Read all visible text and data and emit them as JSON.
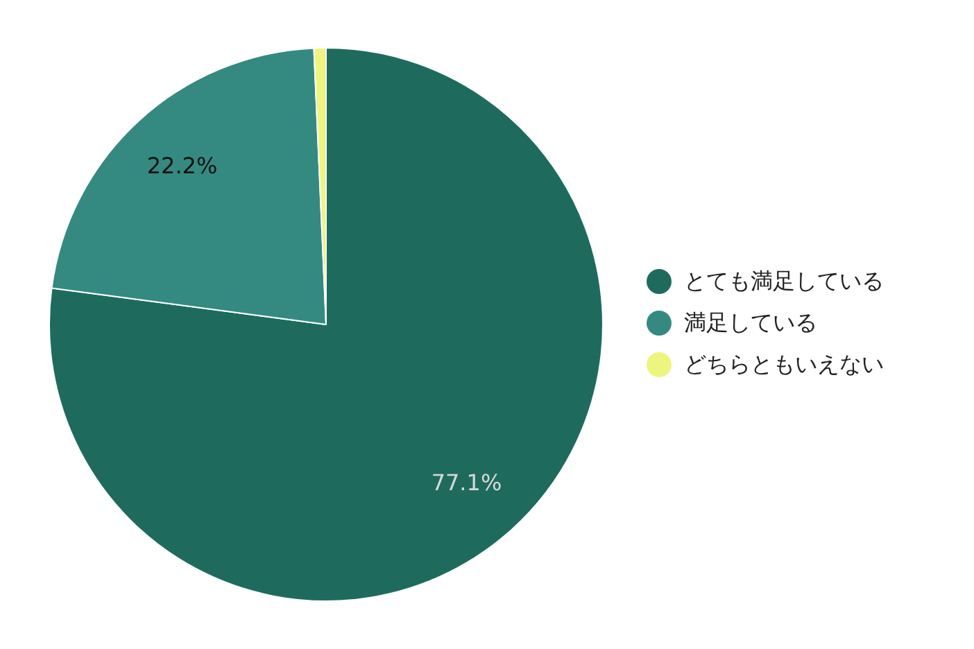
{
  "chart_data": {
    "type": "pie",
    "categories": [
      "とても満足している",
      "満足している",
      "どちらともいえない"
    ],
    "values": [
      77.1,
      22.2,
      0.7
    ],
    "colors": [
      "#1e6b5e",
      "#348a80",
      "#eef57f"
    ],
    "value_labels": [
      "77.1%",
      "22.2%",
      null
    ],
    "legend": "right"
  }
}
